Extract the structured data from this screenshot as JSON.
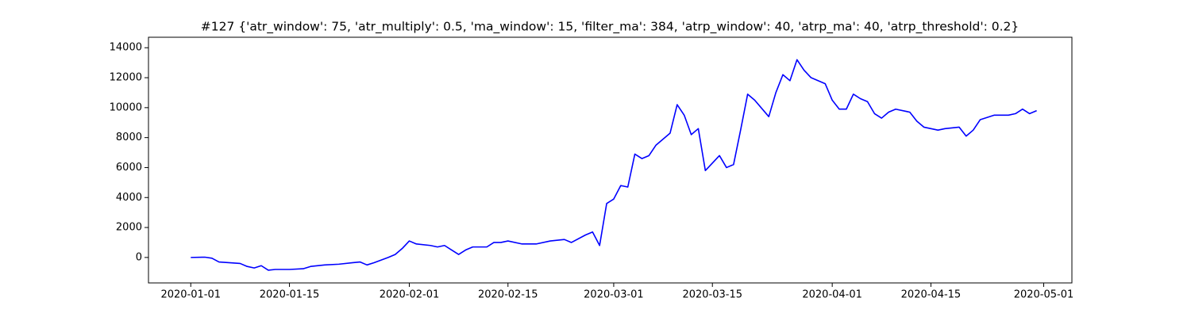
{
  "chart_data": {
    "type": "line",
    "title": "#127 {'atr_window': 75, 'atr_multiply': 0.5, 'ma_window': 15, 'filter_ma': 384, 'atrp_window': 40, 'atrp_ma': 40, 'atrp_threshold': 0.2}",
    "x": [
      "2020-01-01",
      "2020-01-03",
      "2020-01-04",
      "2020-01-05",
      "2020-01-08",
      "2020-01-09",
      "2020-01-10",
      "2020-01-11",
      "2020-01-12",
      "2020-01-13",
      "2020-01-15",
      "2020-01-17",
      "2020-01-18",
      "2020-01-20",
      "2020-01-22",
      "2020-01-24",
      "2020-01-25",
      "2020-01-26",
      "2020-01-27",
      "2020-01-29",
      "2020-01-30",
      "2020-01-31",
      "2020-02-01",
      "2020-02-02",
      "2020-02-04",
      "2020-02-05",
      "2020-02-06",
      "2020-02-07",
      "2020-02-08",
      "2020-02-09",
      "2020-02-10",
      "2020-02-12",
      "2020-02-13",
      "2020-02-14",
      "2020-02-15",
      "2020-02-17",
      "2020-02-19",
      "2020-02-21",
      "2020-02-23",
      "2020-02-24",
      "2020-02-26",
      "2020-02-27",
      "2020-02-28",
      "2020-02-29",
      "2020-03-01",
      "2020-03-02",
      "2020-03-03",
      "2020-03-04",
      "2020-03-05",
      "2020-03-06",
      "2020-03-07",
      "2020-03-09",
      "2020-03-10",
      "2020-03-11",
      "2020-03-12",
      "2020-03-13",
      "2020-03-14",
      "2020-03-16",
      "2020-03-17",
      "2020-03-18",
      "2020-03-19",
      "2020-03-20",
      "2020-03-21",
      "2020-03-23",
      "2020-03-24",
      "2020-03-25",
      "2020-03-26",
      "2020-03-27",
      "2020-03-28",
      "2020-03-29",
      "2020-03-31",
      "2020-04-01",
      "2020-04-02",
      "2020-04-03",
      "2020-04-04",
      "2020-04-05",
      "2020-04-06",
      "2020-04-07",
      "2020-04-08",
      "2020-04-09",
      "2020-04-10",
      "2020-04-12",
      "2020-04-13",
      "2020-04-14",
      "2020-04-15",
      "2020-04-16",
      "2020-04-17",
      "2020-04-19",
      "2020-04-20",
      "2020-04-21",
      "2020-04-22",
      "2020-04-24",
      "2020-04-26",
      "2020-04-27",
      "2020-04-28",
      "2020-04-29",
      "2020-04-30"
    ],
    "series": [
      {
        "color": "#0000ff",
        "values": [
          0,
          20,
          -50,
          -300,
          -400,
          -600,
          -700,
          -550,
          -850,
          -800,
          -800,
          -750,
          -600,
          -500,
          -450,
          -350,
          -300,
          -500,
          -350,
          0,
          200,
          600,
          1100,
          900,
          800,
          700,
          800,
          500,
          200,
          500,
          700,
          700,
          1000,
          1000,
          1100,
          900,
          900,
          1100,
          1200,
          1000,
          1500,
          1700,
          800,
          3600,
          3900,
          4800,
          4700,
          6900,
          6600,
          6800,
          7500,
          8300,
          10200,
          9500,
          8200,
          8600,
          5800,
          6800,
          6000,
          6200,
          8500,
          10900,
          10500,
          9400,
          11000,
          12200,
          11800,
          13200,
          12500,
          12000,
          11600,
          10500,
          9900,
          9900,
          10900,
          10600,
          10400,
          9600,
          9300,
          9700,
          9900,
          9700,
          9100,
          8700,
          8600,
          8500,
          8600,
          8700,
          8100,
          8500,
          9200,
          9500,
          9500,
          9600,
          9900,
          9600,
          9800
        ]
      }
    ],
    "xlim": [
      "2019-12-26",
      "2020-05-05"
    ],
    "xticks": [
      "2020-01-01",
      "2020-01-15",
      "2020-02-01",
      "2020-02-15",
      "2020-03-01",
      "2020-03-15",
      "2020-04-01",
      "2020-04-15",
      "2020-05-01"
    ],
    "ylim": [
      -1700,
      14700
    ],
    "yticks": [
      0,
      2000,
      4000,
      6000,
      8000,
      10000,
      12000,
      14000
    ]
  }
}
